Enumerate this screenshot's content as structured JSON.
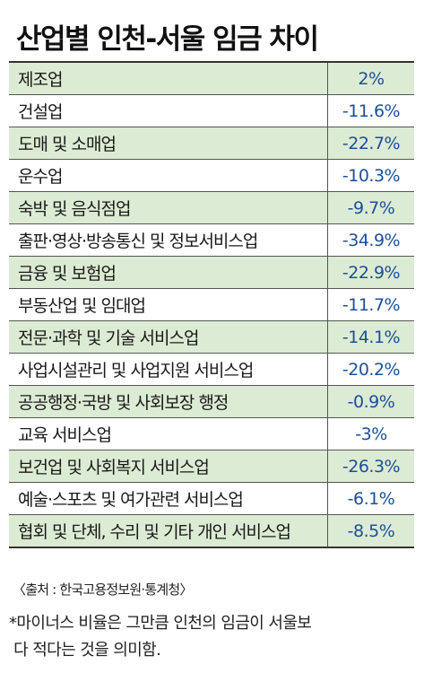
{
  "title": "산업별 인천-서울 임금 차이",
  "rows": [
    {
      "name": "제조업",
      "value": "2%"
    },
    {
      "name": "건설업",
      "value": "-11.6%"
    },
    {
      "name": "도매 및 소매업",
      "value": "-22.7%"
    },
    {
      "name": "운수업",
      "value": "-10.3%"
    },
    {
      "name": "숙박 및 음식점업",
      "value": "-9.7%"
    },
    {
      "name": "출판·영상·방송통신 및 정보서비스업",
      "value": "-34.9%"
    },
    {
      "name": "금융 및 보험업",
      "value": "-22.9%"
    },
    {
      "name": "부동산업 및 임대업",
      "value": "-11.7%"
    },
    {
      "name": "전문·과학 및 기술 서비스업",
      "value": "-14.1%"
    },
    {
      "name": "사업시설관리 및 사업지원 서비스업",
      "value": "-20.2%"
    },
    {
      "name": "공공행정·국방 및 사회보장 행정",
      "value": "-0.9%"
    },
    {
      "name": "교육 서비스업",
      "value": "-3%"
    },
    {
      "name": "보건업 및 사회복지 서비스업",
      "value": "-26.3%"
    },
    {
      "name": "예술·스포츠 및 여가관련 서비스업",
      "value": "-6.1%"
    },
    {
      "name": "협회 및 단체, 수리 및 기타 개인 서비스업",
      "value": "-8.5%"
    }
  ],
  "source": "〈출처 : 한국고용정보원·통계청〉",
  "note_line1": "*마이너스 비율은 그만큼 인천의 임금이 서울보",
  "note_line2": " 다 적다는 것을 의미함.",
  "colors": {
    "shade": "#dcebd3",
    "value_text": "#1d4f9a",
    "border": "#333333"
  }
}
